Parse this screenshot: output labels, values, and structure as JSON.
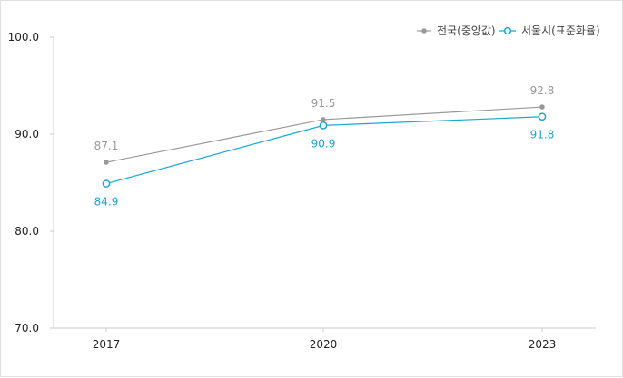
{
  "chart_data": {
    "type": "line",
    "title": "",
    "xlabel": "",
    "ylabel": "",
    "x": [
      "2017",
      "2020",
      "2023"
    ],
    "ylim": [
      70,
      100
    ],
    "yticks": [
      "70.0",
      "80.0",
      "90.0",
      "100.0"
    ],
    "grid": false,
    "legend_position": "top-right",
    "series": [
      {
        "name": "전국(중앙값)",
        "values": [
          87.1,
          91.5,
          92.8
        ],
        "labels": [
          "87.1",
          "91.5",
          "92.8"
        ],
        "color": "#999999",
        "marker": "filled-circle",
        "label_position": "above"
      },
      {
        "name": "서울시(표준화율)",
        "values": [
          84.9,
          90.9,
          91.8
        ],
        "labels": [
          "84.9",
          "90.9",
          "91.8"
        ],
        "color": "#1aa6d9",
        "marker": "hollow-circle",
        "label_position": "below"
      }
    ]
  }
}
